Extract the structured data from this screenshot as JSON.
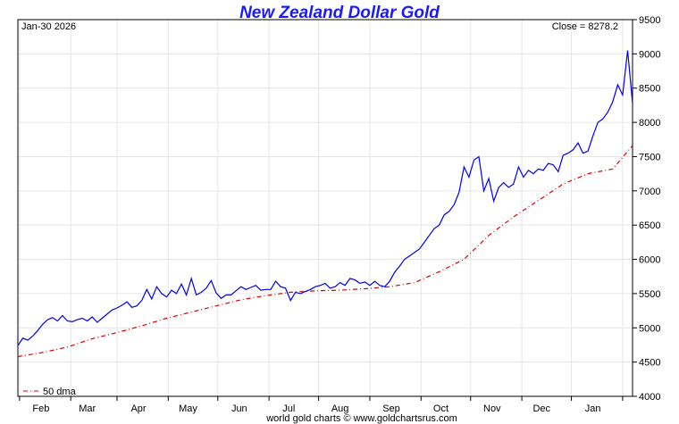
{
  "chart_data": {
    "type": "line",
    "title": "New Zealand Dollar Gold",
    "date_label": "Jan-30  2026",
    "close_label": "Close = 8278.2",
    "footer": "world gold charts © www.goldchartsrus.com",
    "legend_label": "50 dma",
    "ylim": [
      4000,
      9500
    ],
    "yticks": [
      4000,
      4500,
      5000,
      5500,
      6000,
      6500,
      7000,
      7500,
      8000,
      8500,
      9000,
      9500
    ],
    "x_range": [
      0,
      372
    ],
    "months": [
      {
        "label": "Feb",
        "day": 14
      },
      {
        "label": "Mar",
        "day": 42
      },
      {
        "label": "Apr",
        "day": 73
      },
      {
        "label": "May",
        "day": 103
      },
      {
        "label": "Jun",
        "day": 134
      },
      {
        "label": "Jul",
        "day": 164
      },
      {
        "label": "Aug",
        "day": 195
      },
      {
        "label": "Sep",
        "day": 226
      },
      {
        "label": "Oct",
        "day": 256
      },
      {
        "label": "Nov",
        "day": 287
      },
      {
        "label": "Dec",
        "day": 317
      },
      {
        "label": "Jan",
        "day": 348
      }
    ],
    "month_starts": [
      1,
      32,
      60,
      91,
      121,
      152,
      182,
      213,
      244,
      274,
      305,
      335,
      366
    ],
    "series": [
      {
        "name": "NZD Gold",
        "color": "#0000ee",
        "x": [
          0,
          3,
          6,
          9,
          12,
          15,
          18,
          21,
          24,
          27,
          30,
          33,
          36,
          39,
          42,
          45,
          48,
          51,
          54,
          57,
          60,
          63,
          66,
          69,
          72,
          75,
          78,
          81,
          84,
          87,
          90,
          93,
          96,
          99,
          102,
          105,
          108,
          111,
          114,
          117,
          120,
          123,
          126,
          129,
          132,
          135,
          138,
          141,
          144,
          147,
          150,
          153,
          156,
          159,
          162,
          165,
          168,
          171,
          174,
          177,
          180,
          183,
          186,
          189,
          192,
          195,
          198,
          201,
          204,
          207,
          210,
          213,
          216,
          219,
          222,
          225,
          228,
          231,
          234,
          237,
          240,
          243,
          246,
          249,
          252,
          255,
          258,
          261,
          264,
          267,
          270,
          273,
          276,
          279,
          282,
          285,
          288,
          291,
          294,
          297,
          300,
          303,
          306,
          309,
          312,
          315,
          318,
          321,
          324,
          327,
          330,
          333,
          336,
          339,
          342,
          345,
          348,
          351,
          354,
          357,
          360,
          363,
          366,
          369,
          372
        ],
        "values": [
          4740,
          4850,
          4820,
          4880,
          4960,
          5050,
          5120,
          5150,
          5100,
          5180,
          5100,
          5090,
          5120,
          5140,
          5100,
          5160,
          5080,
          5140,
          5200,
          5260,
          5290,
          5330,
          5380,
          5300,
          5320,
          5400,
          5560,
          5420,
          5600,
          5500,
          5450,
          5550,
          5500,
          5640,
          5480,
          5720,
          5480,
          5520,
          5580,
          5690,
          5510,
          5430,
          5480,
          5480,
          5540,
          5600,
          5560,
          5590,
          5620,
          5550,
          5560,
          5560,
          5680,
          5600,
          5580,
          5400,
          5520,
          5500,
          5530,
          5560,
          5600,
          5620,
          5650,
          5580,
          5600,
          5660,
          5620,
          5720,
          5700,
          5650,
          5670,
          5620,
          5680,
          5620,
          5600,
          5680,
          5810,
          5900,
          6000,
          6050,
          6100,
          6150,
          6250,
          6350,
          6450,
          6500,
          6650,
          6700,
          6800,
          6980,
          7350,
          7200,
          7450,
          7500,
          7000,
          7180,
          6850,
          7050,
          7120,
          7050,
          7100,
          7350,
          7200,
          7300,
          7250,
          7320,
          7300,
          7400,
          7380,
          7280,
          7520,
          7550,
          7600,
          7700,
          7550,
          7580,
          7800,
          8000,
          8050,
          8150,
          8300,
          8550,
          8400,
          9050,
          8278
        ]
      },
      {
        "name": "50 dma",
        "color": "#dd0000",
        "x": [
          0,
          15,
          30,
          45,
          60,
          75,
          90,
          105,
          120,
          135,
          150,
          165,
          180,
          195,
          210,
          225,
          240,
          255,
          270,
          285,
          300,
          315,
          330,
          345,
          360,
          372
        ],
        "values": [
          4580,
          4640,
          4720,
          4840,
          4930,
          5030,
          5140,
          5230,
          5320,
          5410,
          5470,
          5520,
          5540,
          5550,
          5570,
          5600,
          5660,
          5820,
          6000,
          6350,
          6620,
          6860,
          7100,
          7250,
          7320,
          7660
        ]
      }
    ]
  }
}
